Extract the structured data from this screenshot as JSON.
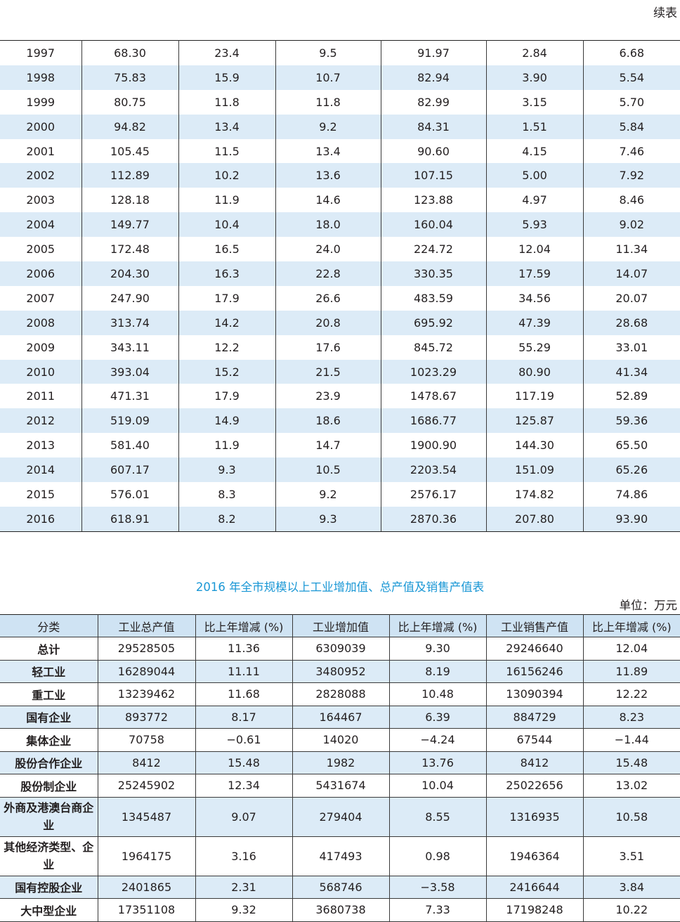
{
  "continued_label": "续表",
  "table1": {
    "rows": [
      [
        "1997",
        "68.30",
        "23.4",
        "9.5",
        "91.97",
        "2.84",
        "6.68"
      ],
      [
        "1998",
        "75.83",
        "15.9",
        "10.7",
        "82.94",
        "3.90",
        "5.54"
      ],
      [
        "1999",
        "80.75",
        "11.8",
        "11.8",
        "82.99",
        "3.15",
        "5.70"
      ],
      [
        "2000",
        "94.82",
        "13.4",
        "9.2",
        "84.31",
        "1.51",
        "5.84"
      ],
      [
        "2001",
        "105.45",
        "11.5",
        "13.4",
        "90.60",
        "4.15",
        "7.46"
      ],
      [
        "2002",
        "112.89",
        "10.2",
        "13.6",
        "107.15",
        "5.00",
        "7.92"
      ],
      [
        "2003",
        "128.18",
        "11.9",
        "14.6",
        "123.88",
        "4.97",
        "8.46"
      ],
      [
        "2004",
        "149.77",
        "10.4",
        "18.0",
        "160.04",
        "5.93",
        "9.02"
      ],
      [
        "2005",
        "172.48",
        "16.5",
        "24.0",
        "224.72",
        "12.04",
        "11.34"
      ],
      [
        "2006",
        "204.30",
        "16.3",
        "22.8",
        "330.35",
        "17.59",
        "14.07"
      ],
      [
        "2007",
        "247.90",
        "17.9",
        "26.6",
        "483.59",
        "34.56",
        "20.07"
      ],
      [
        "2008",
        "313.74",
        "14.2",
        "20.8",
        "695.92",
        "47.39",
        "28.68"
      ],
      [
        "2009",
        "343.11",
        "12.2",
        "17.6",
        "845.72",
        "55.29",
        "33.01"
      ],
      [
        "2010",
        "393.04",
        "15.2",
        "21.5",
        "1023.29",
        "80.90",
        "41.34"
      ],
      [
        "2011",
        "471.31",
        "17.9",
        "23.9",
        "1478.67",
        "117.19",
        "52.89"
      ],
      [
        "2012",
        "519.09",
        "14.9",
        "18.6",
        "1686.77",
        "125.87",
        "59.36"
      ],
      [
        "2013",
        "581.40",
        "11.9",
        "14.7",
        "1900.90",
        "144.30",
        "65.50"
      ],
      [
        "2014",
        "607.17",
        "9.3",
        "10.5",
        "2203.54",
        "151.09",
        "65.26"
      ],
      [
        "2015",
        "576.01",
        "8.3",
        "9.2",
        "2576.17",
        "174.82",
        "74.86"
      ],
      [
        "2016",
        "618.91",
        "8.2",
        "9.3",
        "2870.36",
        "207.80",
        "93.90"
      ]
    ]
  },
  "table2": {
    "title": "2016 年全市规模以上工业增加值、总产值及销售产值表",
    "unit": "单位：万元",
    "headers": [
      "分类",
      "工业总产值",
      "比上年增减 (%)",
      "工业增加值",
      "比上年增减 (%)",
      "工业销售产值",
      "比上年增减 (%)"
    ],
    "rows": [
      [
        "总计",
        "29528505",
        "11.36",
        "6309039",
        "9.30",
        "29246640",
        "12.04"
      ],
      [
        "轻工业",
        "16289044",
        "11.11",
        "3480952",
        "8.19",
        "16156246",
        "11.89"
      ],
      [
        "重工业",
        "13239462",
        "11.68",
        "2828088",
        "10.48",
        "13090394",
        "12.22"
      ],
      [
        "国有企业",
        "893772",
        "8.17",
        "164467",
        "6.39",
        "884729",
        "8.23"
      ],
      [
        "集体企业",
        "70758",
        "−0.61",
        "14020",
        "−4.24",
        "67544",
        "−1.44"
      ],
      [
        "股份合作企业",
        "8412",
        "15.48",
        "1982",
        "13.76",
        "8412",
        "15.48"
      ],
      [
        "股份制企业",
        "25245902",
        "12.34",
        "5431674",
        "10.04",
        "25022656",
        "13.02"
      ],
      [
        "外商及港澳台商企业",
        "1345487",
        "9.07",
        "279404",
        "8.55",
        "1316935",
        "10.58"
      ],
      [
        "其他经济类型、企业",
        "1964175",
        "3.16",
        "417493",
        "0.98",
        "1946364",
        "3.51"
      ],
      [
        "国有控股企业",
        "2401865",
        "2.31",
        "568746",
        "−3.58",
        "2416644",
        "3.84"
      ],
      [
        "大中型企业",
        "17351108",
        "9.32",
        "3680738",
        "7.33",
        "17198248",
        "10.22"
      ]
    ]
  }
}
